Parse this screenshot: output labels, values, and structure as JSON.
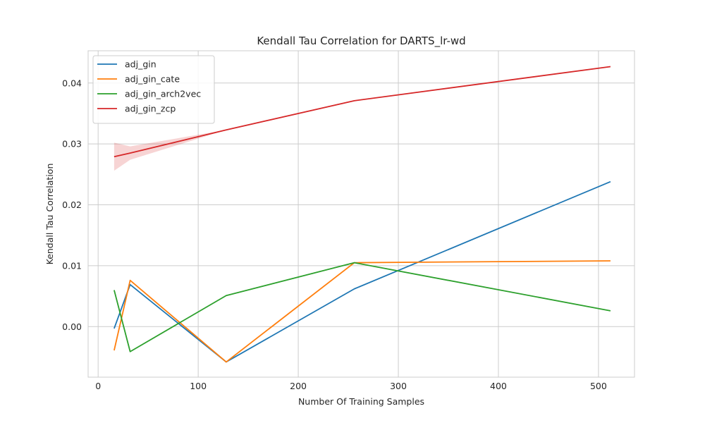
{
  "chart_data": {
    "type": "line",
    "title": "Kendall Tau Correlation for DARTS_lr-wd",
    "xlabel": "Number Of Training Samples",
    "ylabel": "Kendall Tau Correlation",
    "xlim": [
      -10,
      536
    ],
    "ylim": [
      -0.0083,
      0.0453
    ],
    "xticks": [
      0,
      100,
      200,
      300,
      400,
      500
    ],
    "yticks": [
      0.0,
      0.01,
      0.02,
      0.03,
      0.04
    ],
    "xtick_labels": [
      "0",
      "100",
      "200",
      "300",
      "400",
      "500"
    ],
    "ytick_labels": [
      "0.00",
      "0.01",
      "0.02",
      "0.03",
      "0.04"
    ],
    "grid": true,
    "legend_position": "top-left",
    "x": [
      16,
      32,
      128,
      256,
      512
    ],
    "series": [
      {
        "name": "adj_gin",
        "color": "#1f77b4",
        "values": [
          -0.0003,
          0.0069,
          -0.0058,
          0.0062,
          0.0238
        ]
      },
      {
        "name": "adj_gin_cate",
        "color": "#ff7f0e",
        "values": [
          -0.0039,
          0.0076,
          -0.0058,
          0.0105,
          0.0108
        ]
      },
      {
        "name": "adj_gin_arch2vec",
        "color": "#2ca02c",
        "values": [
          0.006,
          -0.0041,
          0.0051,
          0.0105,
          0.0026
        ]
      },
      {
        "name": "adj_gin_zcp",
        "color": "#d62728",
        "values": [
          0.0279,
          0.0285,
          0.0323,
          0.0371,
          0.0427
        ],
        "band_lower": [
          0.0256,
          0.0274,
          0.0323,
          0.0371,
          0.0427
        ],
        "band_upper": [
          0.0302,
          0.0296,
          0.0323,
          0.0371,
          0.0427
        ]
      }
    ]
  }
}
